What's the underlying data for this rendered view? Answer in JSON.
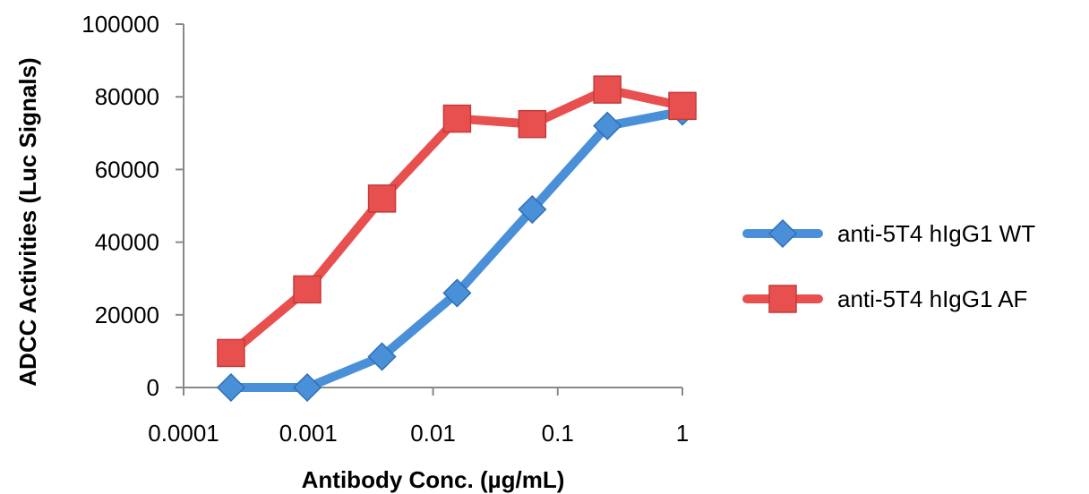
{
  "chart_data": {
    "type": "line",
    "x_scale": "log",
    "xlabel": "Antibody Conc. (µg/mL)",
    "ylabel": "ADCC Activities (Luc Signals)",
    "xlim": [
      0.0001,
      1
    ],
    "ylim": [
      0,
      100000
    ],
    "x_ticks": [
      0.0001,
      0.001,
      0.01,
      0.1,
      1
    ],
    "x_tick_labels": [
      "0.0001",
      "0.001",
      "0.01",
      "0.1",
      "1"
    ],
    "y_ticks": [
      0,
      20000,
      40000,
      60000,
      80000,
      100000
    ],
    "y_tick_labels": [
      "0",
      "20000",
      "40000",
      "60000",
      "80000",
      "100000"
    ],
    "grid": false,
    "legend_position": "right",
    "series": [
      {
        "name": "anti-5T4 hIgG1 WT",
        "marker": "diamond",
        "color": "#4A90D9",
        "x": [
          0.00024,
          0.00098,
          0.0039,
          0.0156,
          0.0625,
          0.25,
          1
        ],
        "y": [
          0,
          0,
          8500,
          26000,
          49000,
          72000,
          76000
        ]
      },
      {
        "name": "anti-5T4 hIgG1 AF",
        "marker": "square",
        "color": "#E8504F",
        "x": [
          0.00024,
          0.00098,
          0.0039,
          0.0156,
          0.0625,
          0.25,
          1
        ],
        "y": [
          9500,
          27000,
          52000,
          74000,
          72500,
          82000,
          77500
        ]
      }
    ]
  }
}
